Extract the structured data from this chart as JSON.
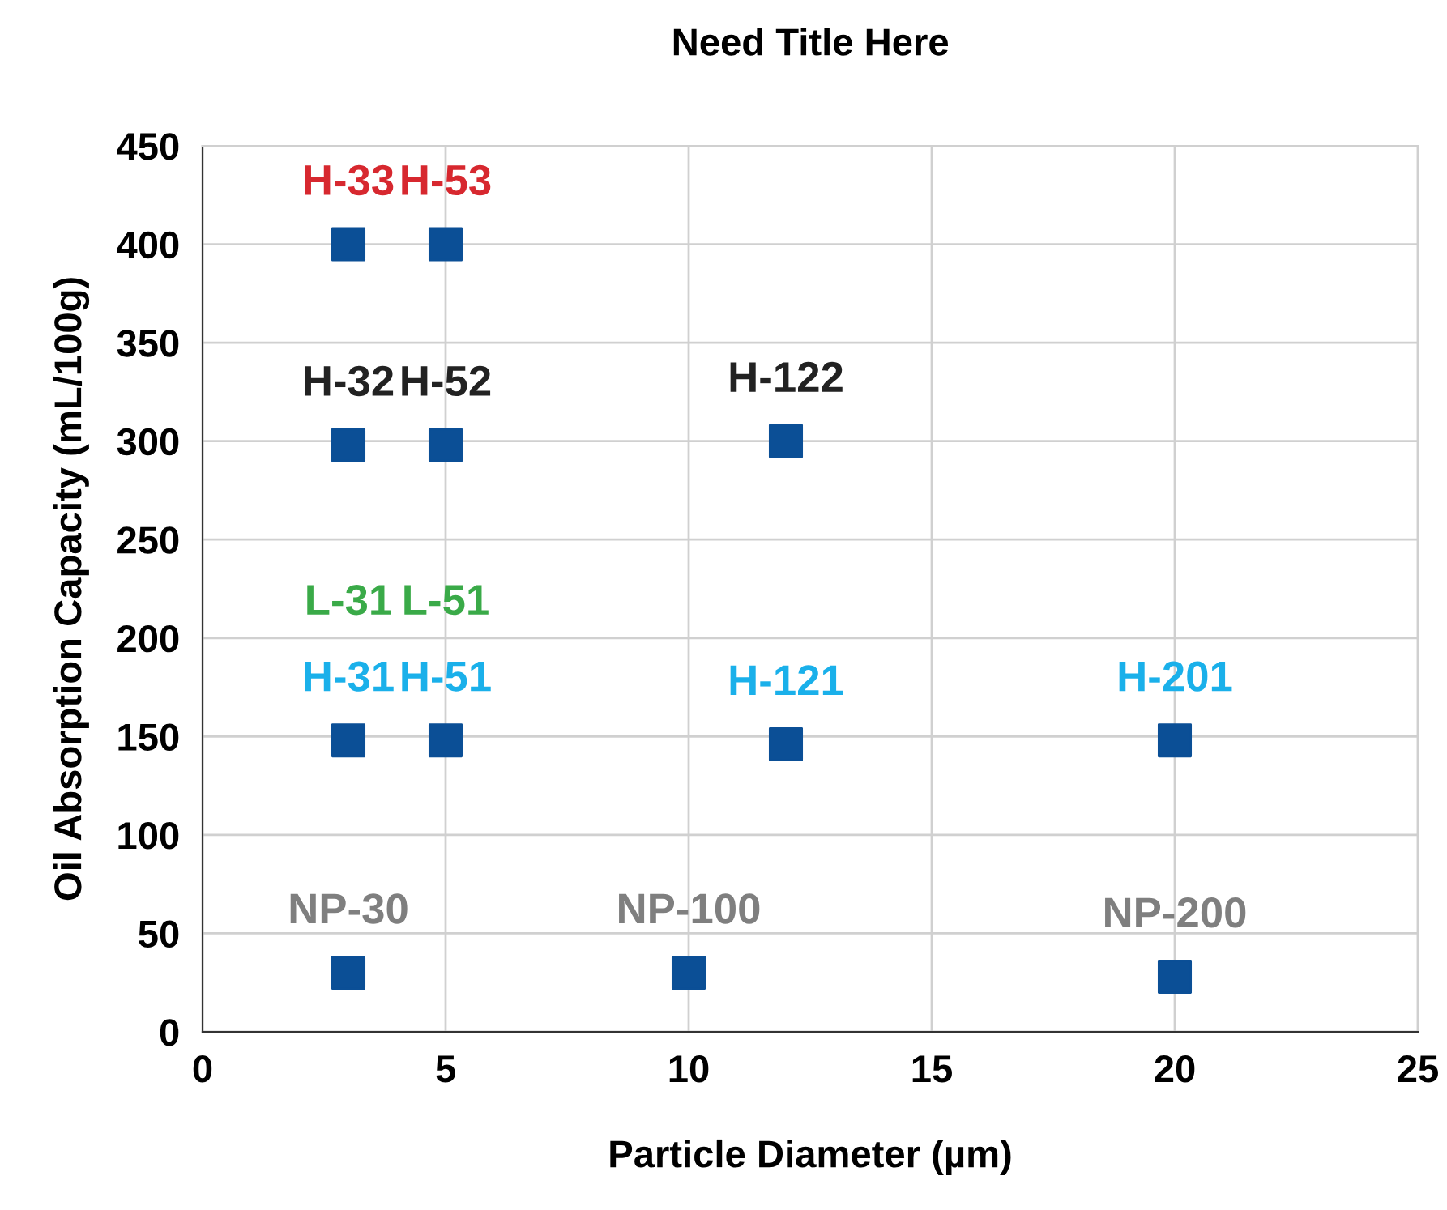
{
  "chart_data": {
    "type": "scatter",
    "title": "Need Title Here",
    "xlabel": "Particle Diameter (µm)",
    "ylabel": "Oil Absorption Capacity (mL/100g)",
    "xlim": [
      0,
      25
    ],
    "xticks": [
      0,
      5,
      10,
      15,
      20,
      25
    ],
    "ylim": [
      0,
      450
    ],
    "yticks": [
      0,
      50,
      100,
      150,
      200,
      250,
      300,
      350,
      400,
      450
    ],
    "grid": true,
    "marker": "square",
    "series": [
      {
        "color": "#0b4f96",
        "x": [
          3,
          5
        ],
        "values": [
          400,
          400
        ],
        "value_labels": [
          "H-33",
          "H-53"
        ]
      },
      {
        "color": "#0b4f96",
        "x": [
          3,
          5,
          12
        ],
        "values": [
          298,
          298,
          300
        ],
        "value_labels": [
          "H-32",
          "H-52",
          "H-122"
        ]
      },
      {
        "color": "#0b4f96",
        "x": [
          3,
          5,
          12,
          20
        ],
        "values": [
          148,
          148,
          146,
          148
        ],
        "value_labels": [
          "H-31",
          "H-51",
          "H-121",
          "H-201"
        ]
      },
      {
        "color": "#0b4f96",
        "x": [
          3,
          10,
          20
        ],
        "values": [
          30,
          30,
          28
        ],
        "value_labels": [
          "NP-30",
          "NP-100",
          "NP-200"
        ]
      }
    ],
    "annotations": [
      {
        "text": "L-31",
        "x": 3,
        "y": 148
      },
      {
        "text": "L-51",
        "x": 5,
        "y": 148
      }
    ]
  }
}
